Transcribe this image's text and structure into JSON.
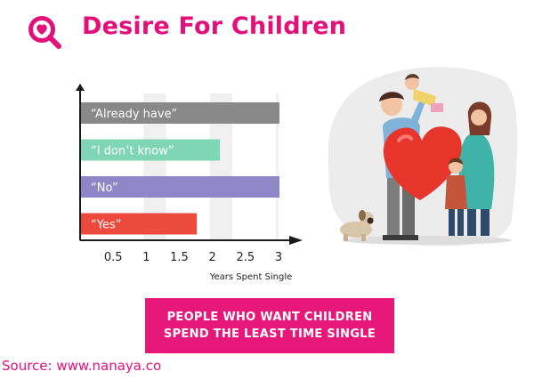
{
  "header": {
    "title": "Desire For Children",
    "logo_icon": "magnifier-heart-icon"
  },
  "chart_data": {
    "type": "bar",
    "orientation": "horizontal",
    "categories": [
      "“Already have”",
      "“I don’t know”",
      "“No”",
      "“Yes”"
    ],
    "values": [
      3.0,
      2.1,
      3.0,
      1.75
    ],
    "colors": [
      "#898989",
      "#7fd6b6",
      "#8f86c8",
      "#ec4a3d"
    ],
    "xlabel": "Years Spent Single",
    "ylabel": "",
    "xticks": [
      "0.5",
      "1",
      "1.5",
      "2",
      "2.5",
      "3"
    ],
    "xlim": [
      0,
      3.2
    ],
    "grid": "vertical bands"
  },
  "illustration": {
    "icon": "family-with-heart-illustration"
  },
  "banner": {
    "line1": "PEOPLE WHO WANT CHILDREN",
    "line2": "SPEND THE LEAST TIME SINGLE"
  },
  "footer": {
    "source": "Source: www.nanaya.co"
  },
  "colors": {
    "accent": "#e4107a",
    "banner": "#e8177a"
  }
}
